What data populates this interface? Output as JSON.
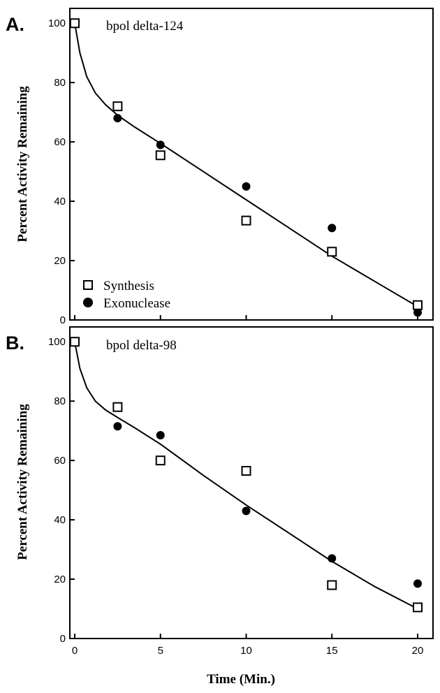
{
  "chart_data": [
    {
      "type": "scatter",
      "panel_label": "A.",
      "title": "bpol delta-124",
      "ylabel": "Percent Activity Remaining",
      "xlabel": "",
      "xlim": [
        0,
        22
      ],
      "ylim": [
        0,
        105
      ],
      "xticks": [
        0,
        5,
        10,
        15,
        20
      ],
      "yticks": [
        0,
        20,
        40,
        60,
        80,
        100
      ],
      "show_x_tick_labels": false,
      "legend": {
        "placement": "bottom-left",
        "entries": [
          "Synthesis",
          "Exonuclease"
        ]
      },
      "series": [
        {
          "name": "Synthesis",
          "marker": "open-square",
          "x": [
            0,
            2.5,
            5,
            10,
            15,
            20
          ],
          "y": [
            100,
            72,
            55.5,
            33.5,
            23,
            5
          ]
        },
        {
          "name": "Exonuclease",
          "marker": "filled-circle",
          "x": [
            0,
            2.5,
            5,
            10,
            15,
            20
          ],
          "y": [
            100,
            68,
            59,
            45,
            31,
            2.5
          ]
        }
      ],
      "fit_curve": {
        "x": [
          0,
          0.3,
          0.7,
          1.2,
          1.8,
          2.5,
          3.5,
          5,
          7.5,
          10,
          12.5,
          15,
          17.5,
          20
        ],
        "y": [
          100,
          90,
          82,
          76.5,
          72.5,
          69,
          65,
          59.5,
          50,
          40.5,
          31,
          21.5,
          13,
          4.5
        ]
      }
    },
    {
      "type": "scatter",
      "panel_label": "B.",
      "title": "bpol delta-98",
      "ylabel": "Percent Activity Remaining",
      "xlabel": "Time (Min.)",
      "xlim": [
        0,
        22
      ],
      "ylim": [
        0,
        105
      ],
      "xticks": [
        0,
        5,
        10,
        15,
        20
      ],
      "yticks": [
        0,
        20,
        40,
        60,
        80,
        100
      ],
      "show_x_tick_labels": true,
      "series": [
        {
          "name": "Synthesis",
          "marker": "open-square",
          "x": [
            0,
            2.5,
            5,
            10,
            15,
            20
          ],
          "y": [
            100,
            78,
            60,
            56.5,
            18,
            10.5
          ]
        },
        {
          "name": "Exonuclease",
          "marker": "filled-circle",
          "x": [
            0,
            2.5,
            5,
            10,
            15,
            20
          ],
          "y": [
            100,
            71.5,
            68.5,
            43,
            27,
            18.5
          ]
        }
      ],
      "fit_curve": {
        "x": [
          0,
          0.3,
          0.7,
          1.2,
          1.8,
          2.5,
          3.5,
          5,
          7.5,
          10,
          12.5,
          15,
          17.5,
          20
        ],
        "y": [
          100,
          91,
          84.5,
          80,
          77,
          74.5,
          71,
          65.5,
          55,
          45,
          35.5,
          26,
          17.5,
          10
        ]
      }
    }
  ]
}
